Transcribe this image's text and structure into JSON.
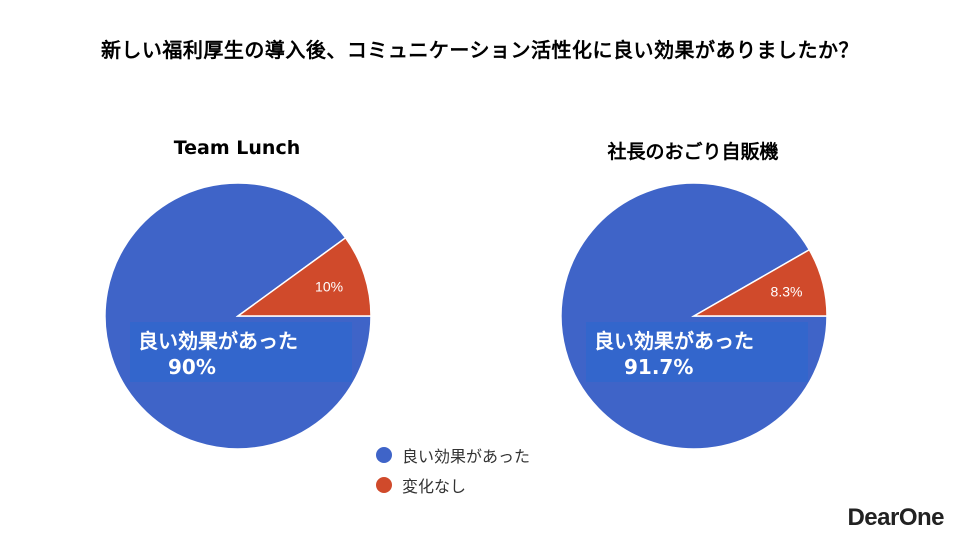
{
  "title": "新しい福利厚生の導入後、コミュニケーション活性化に良い効果がありましたか？",
  "colors": {
    "positive": "#3f64c8",
    "neutral": "#d04a2b"
  },
  "legend": [
    {
      "label": "良い効果があった",
      "color": "#3f64c8"
    },
    {
      "label": "変化なし",
      "color": "#d04a2b"
    }
  ],
  "chart_data": [
    {
      "type": "pie",
      "title": "Team Lunch",
      "slices": [
        {
          "label": "良い効果があった",
          "value": 90,
          "display": "90%"
        },
        {
          "label": "変化なし",
          "value": 10,
          "display": "10%"
        }
      ]
    },
    {
      "type": "pie",
      "title": "社長のおごり自販機",
      "slices": [
        {
          "label": "良い効果があった",
          "value": 91.7,
          "display": "91.7%"
        },
        {
          "label": "変化なし",
          "value": 8.3,
          "display": "8.3%"
        }
      ]
    }
  ],
  "logo": "DearOne"
}
